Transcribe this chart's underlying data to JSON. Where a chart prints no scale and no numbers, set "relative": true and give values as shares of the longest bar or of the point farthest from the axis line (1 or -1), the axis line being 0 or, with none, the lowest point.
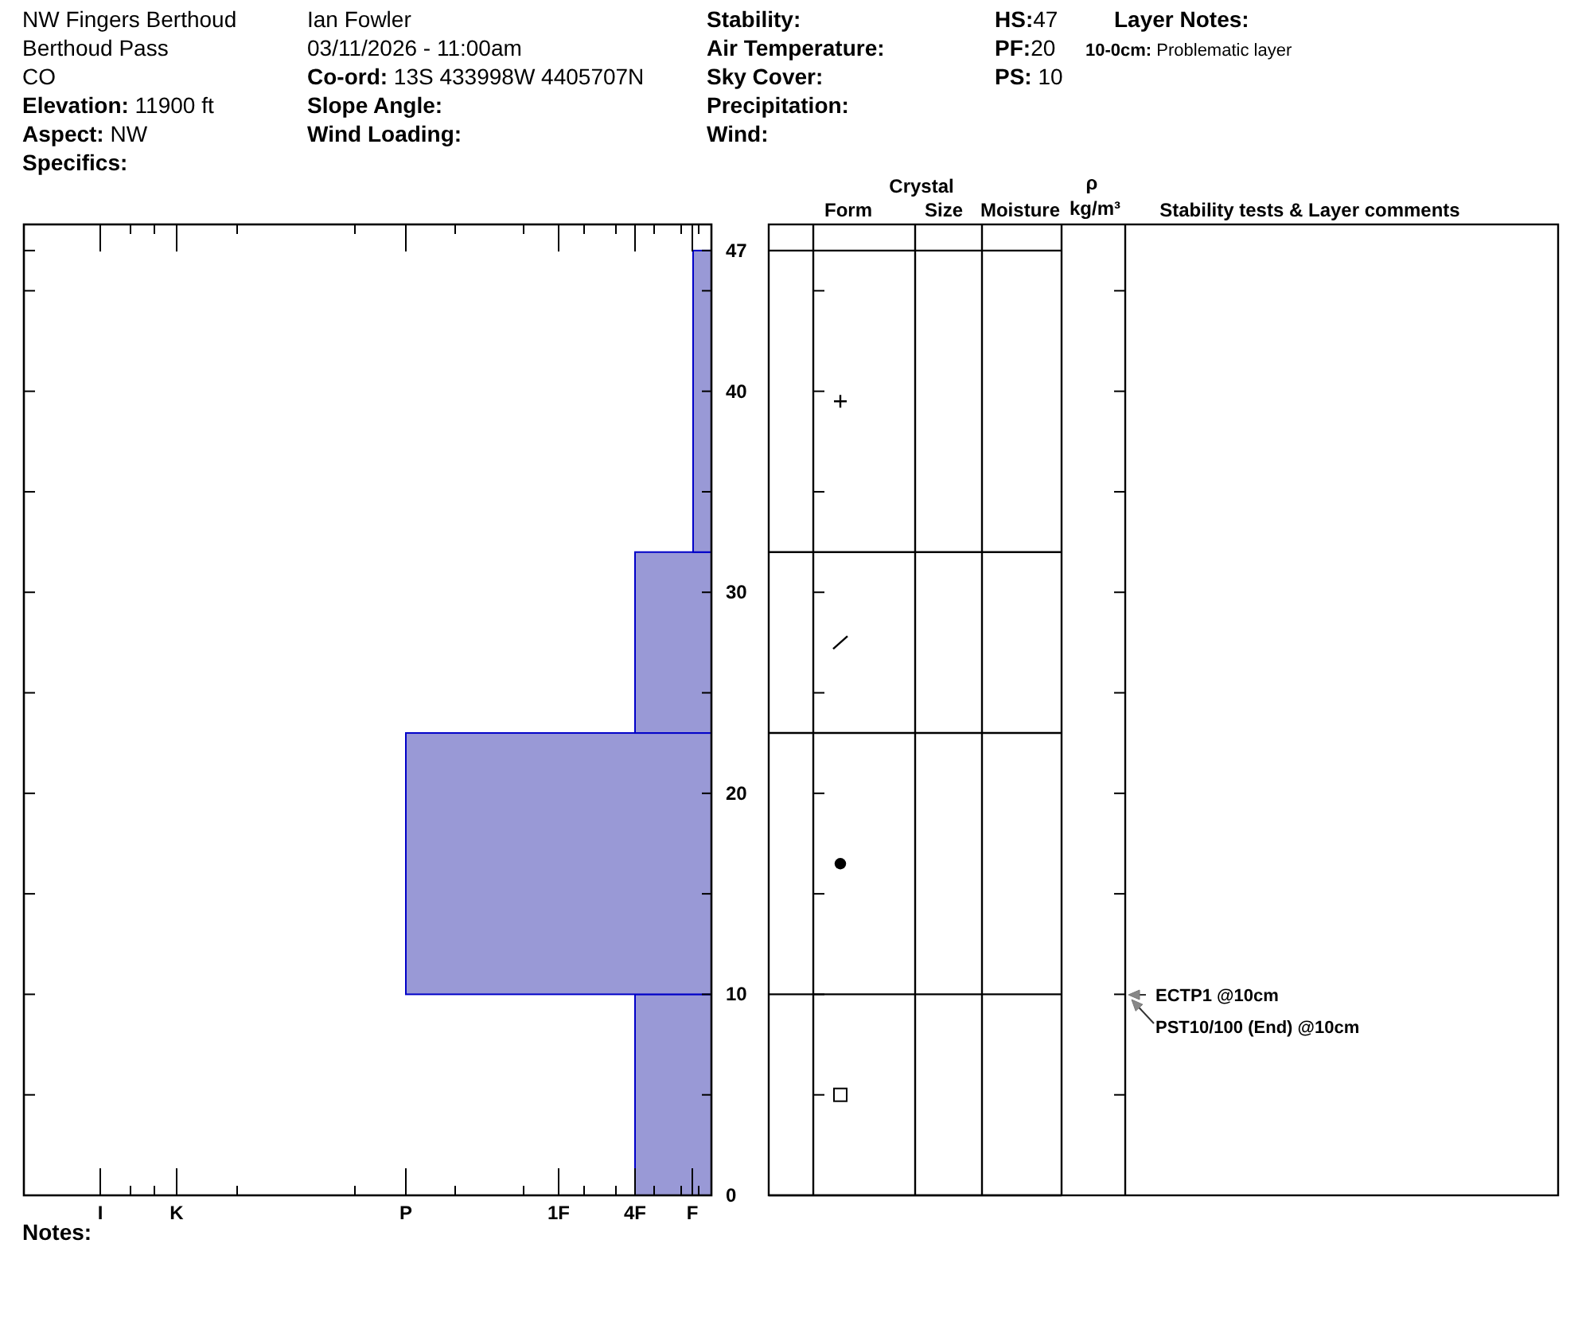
{
  "chart_data": {
    "type": "bar",
    "orientation": "horizontal",
    "relative": true,
    "x": [
      5,
      16.5,
      27.5,
      39.5
    ],
    "values": [
      0.25,
      1,
      0.25,
      0.06
    ],
    "color": "#9999d6",
    "ylim": [
      0,
      48.3
    ],
    "yticks": [
      0,
      {
        "value": 5,
        "label": null
      },
      10,
      {
        "value": 15,
        "label": null
      },
      20,
      {
        "value": 25,
        "label": null
      },
      30,
      {
        "value": 35,
        "label": null
      },
      40,
      {
        "value": 45,
        "label": null
      },
      47
    ],
    "annotations": [
      "NW Fingers Berthoud",
      "Berthoud Pass",
      "CO",
      "Elevation: 11900 ft",
      "Aspect: NW",
      "Specifics:",
      "Ian Fowler",
      "03/11/2026 - 11:00am",
      "Co-ord: 13S 433998W 4405707N",
      "Slope Angle:",
      "Wind Loading:",
      "Stability:",
      "Air Temperature:",
      "Sky Cover:",
      "Precipitation:",
      "Wind:",
      "HS:47",
      "PF:20",
      "PS: 10",
      "Layer Notes:",
      "10-0cm: Problematic layer",
      "Crystal",
      "Form",
      "Size",
      "Moisture",
      "ρ",
      "kg/m³",
      "Stability tests & Layer comments",
      "ECTP1 @10cm",
      "PST10/100 (End) @10cm",
      "I",
      "K",
      "P",
      "1F",
      "4F",
      "F",
      "Notes:"
    ]
  }
}
